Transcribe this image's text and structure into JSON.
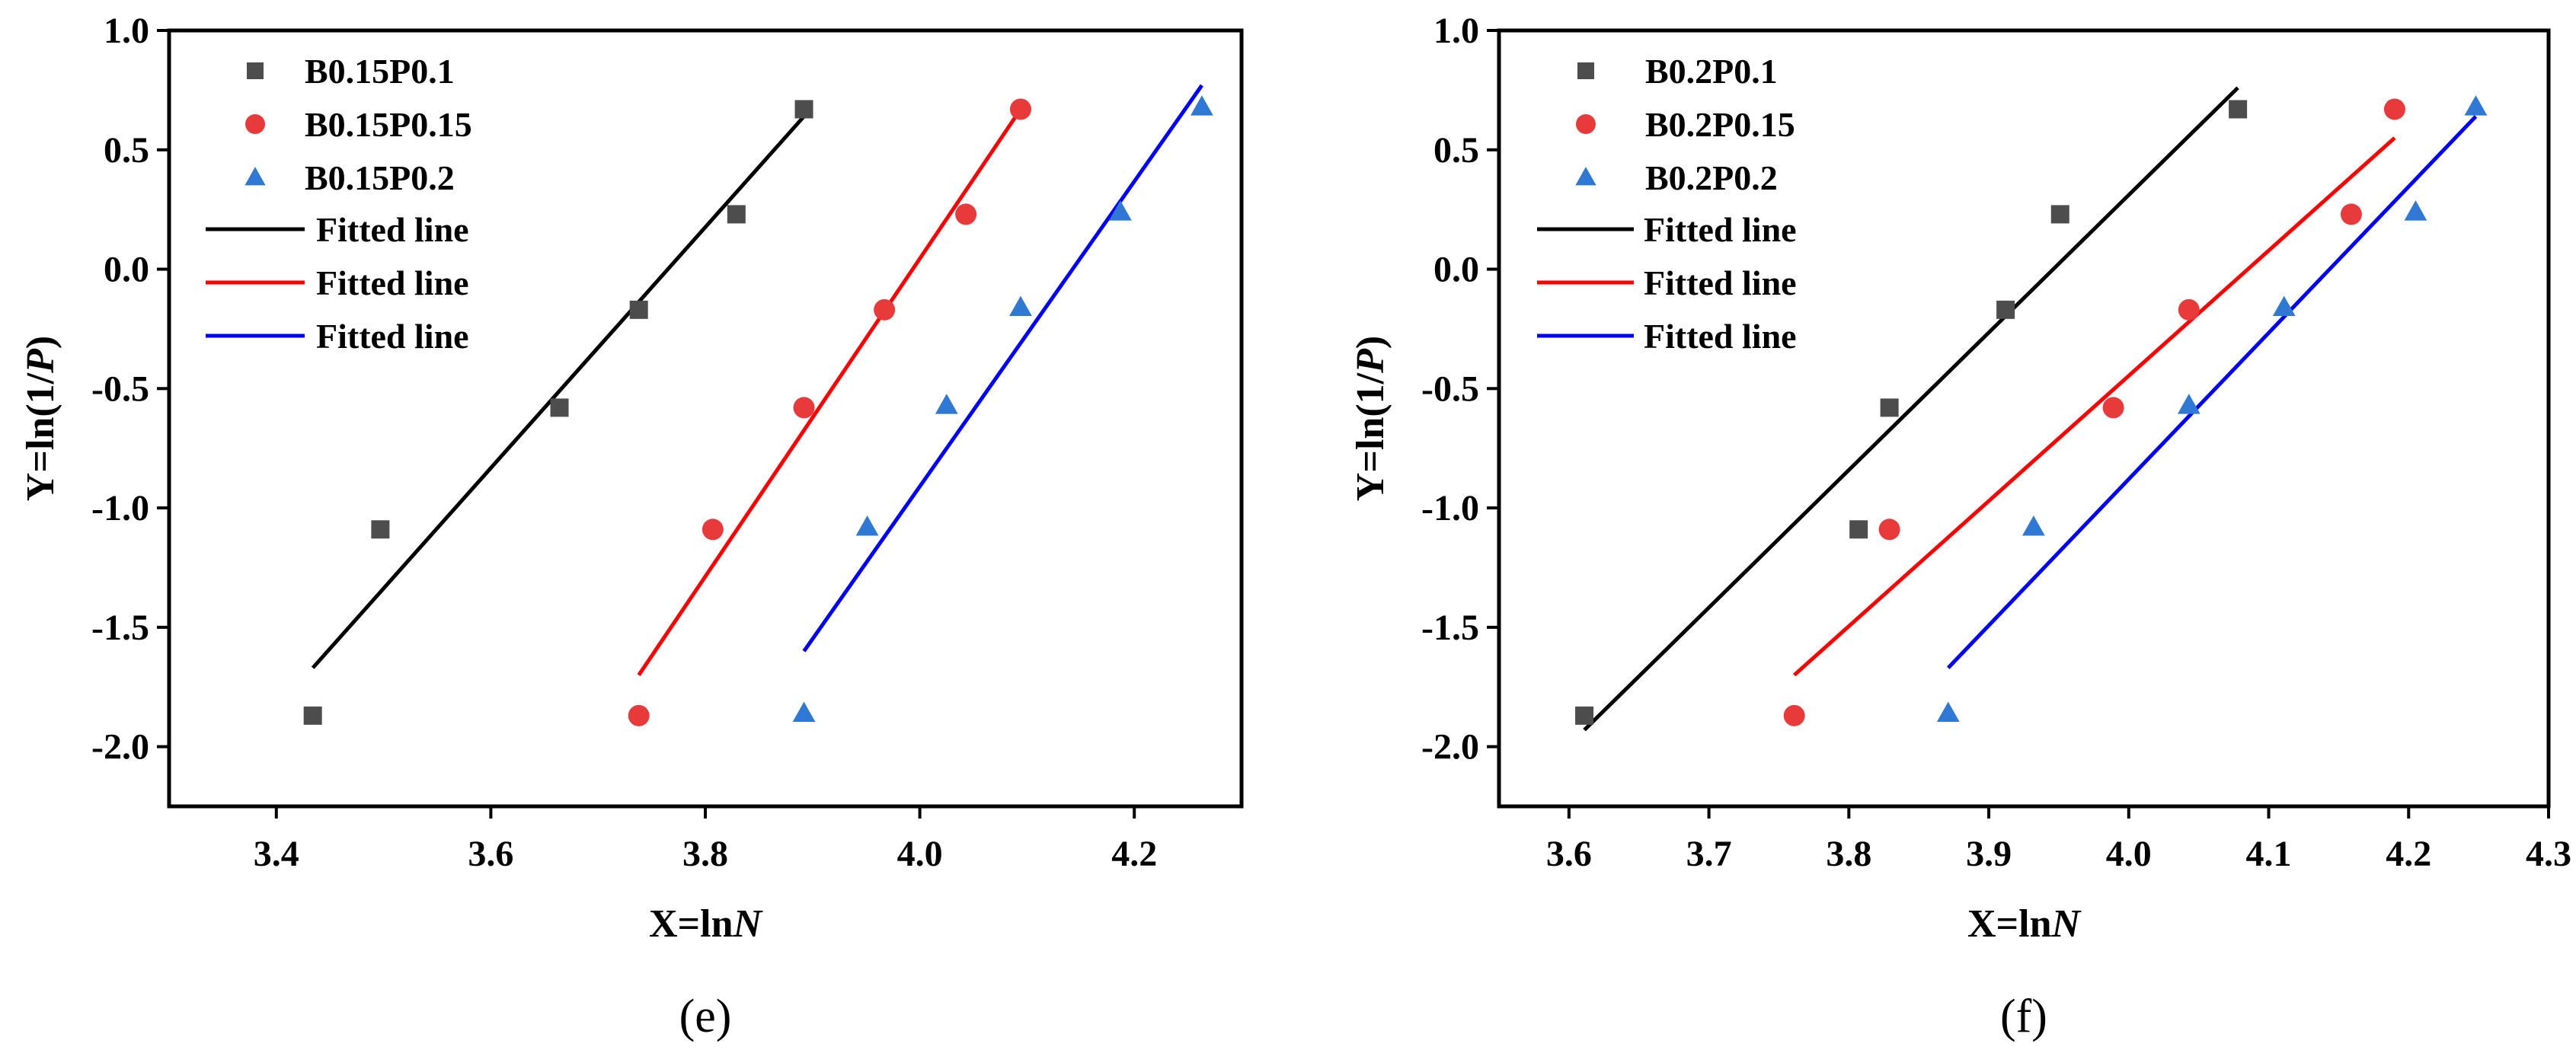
{
  "figure": {
    "panel_labels": [
      "(e)",
      "(f)"
    ]
  },
  "chart_data": [
    {
      "type": "scatter",
      "panel_label": "(e)",
      "xlabel_prefix": "X=ln",
      "xlabel_var": "N",
      "ylabel_prefix": "Y=ln(1/",
      "ylabel_var": "P",
      "ylabel_suffix": ")",
      "xlim": [
        3.3,
        4.3
      ],
      "ylim": [
        -2.25,
        1.0
      ],
      "xticks": [
        3.4,
        3.6,
        3.8,
        4.0,
        4.2
      ],
      "xtick_labels": [
        "3.4",
        "3.6",
        "3.8",
        "4.0",
        "4.2"
      ],
      "yticks": [
        1.0,
        0.5,
        0.0,
        -0.5,
        -1.0,
        -1.5,
        -2.0
      ],
      "ytick_labels": [
        "1.0",
        "0.5",
        "0.0",
        "-0.5",
        "-1.0",
        "-1.5",
        "-2.0"
      ],
      "legend_position": "top-left",
      "series": [
        {
          "name": "B0.15P0.1",
          "marker": "square",
          "color": "#4d4d4d",
          "x": [
            3.434,
            3.497,
            3.664,
            3.738,
            3.829,
            3.892
          ],
          "y": [
            -1.87,
            -1.09,
            -0.58,
            -0.17,
            0.23,
            0.67
          ]
        },
        {
          "name": "B0.15P0.15",
          "marker": "circle",
          "color": "#e83a3a",
          "x": [
            3.738,
            3.807,
            3.892,
            3.967,
            4.043,
            4.094
          ],
          "y": [
            -1.87,
            -1.09,
            -0.58,
            -0.17,
            0.23,
            0.67
          ]
        },
        {
          "name": "B0.15P0.2",
          "marker": "triangle",
          "color": "#2f78d4",
          "x": [
            3.892,
            3.951,
            4.025,
            4.094,
            4.187,
            4.263
          ],
          "y": [
            -1.86,
            -1.08,
            -0.57,
            -0.16,
            0.24,
            0.68
          ]
        }
      ],
      "fits": [
        {
          "name": "Fitted line",
          "color": "#000000",
          "x": [
            3.434,
            3.892
          ],
          "y": [
            -1.67,
            0.64
          ]
        },
        {
          "name": "Fitted line",
          "color": "#ff0000",
          "x": [
            3.738,
            4.094
          ],
          "y": [
            -1.7,
            0.67
          ]
        },
        {
          "name": "Fitted line",
          "color": "#0000ff",
          "x": [
            3.892,
            4.263
          ],
          "y": [
            -1.6,
            0.77
          ]
        }
      ]
    },
    {
      "type": "scatter",
      "panel_label": "(f)",
      "xlabel_prefix": "X=ln",
      "xlabel_var": "N",
      "ylabel_prefix": "Y=ln(1/",
      "ylabel_var": "P",
      "ylabel_suffix": ")",
      "xlim": [
        3.55,
        4.3
      ],
      "ylim": [
        -2.25,
        1.0
      ],
      "xticks": [
        3.6,
        3.7,
        3.8,
        3.9,
        4.0,
        4.1,
        4.2,
        4.3
      ],
      "xtick_labels": [
        "3.6",
        "3.7",
        "3.8",
        "3.9",
        "4.0",
        "4.1",
        "4.2",
        "4.3"
      ],
      "yticks": [
        1.0,
        0.5,
        0.0,
        -0.5,
        -1.0,
        -1.5,
        -2.0
      ],
      "ytick_labels": [
        "1.0",
        "0.5",
        "0.0",
        "-0.5",
        "-1.0",
        "-1.5",
        "-2.0"
      ],
      "legend_position": "top-left",
      "series": [
        {
          "name": "B0.2P0.1",
          "marker": "square",
          "color": "#4d4d4d",
          "x": [
            3.611,
            3.807,
            3.829,
            3.912,
            3.951,
            4.078
          ],
          "y": [
            -1.87,
            -1.09,
            -0.58,
            -0.17,
            0.23,
            0.67
          ]
        },
        {
          "name": "B0.2P0.15",
          "marker": "circle",
          "color": "#e83a3a",
          "x": [
            3.761,
            3.829,
            3.989,
            4.043,
            4.159,
            4.19
          ],
          "y": [
            -1.87,
            -1.09,
            -0.58,
            -0.17,
            0.23,
            0.67
          ]
        },
        {
          "name": "B0.2P0.2",
          "marker": "triangle",
          "color": "#2f78d4",
          "x": [
            3.871,
            3.932,
            4.043,
            4.111,
            4.205,
            4.248
          ],
          "y": [
            -1.86,
            -1.08,
            -0.57,
            -0.16,
            0.24,
            0.68
          ]
        }
      ],
      "fits": [
        {
          "name": "Fitted line",
          "color": "#000000",
          "x": [
            3.611,
            4.078
          ],
          "y": [
            -1.93,
            0.76
          ]
        },
        {
          "name": "Fitted line",
          "color": "#ff0000",
          "x": [
            3.761,
            4.19
          ],
          "y": [
            -1.7,
            0.55
          ]
        },
        {
          "name": "Fitted line",
          "color": "#0000ff",
          "x": [
            3.871,
            4.248
          ],
          "y": [
            -1.67,
            0.64
          ]
        }
      ]
    }
  ]
}
